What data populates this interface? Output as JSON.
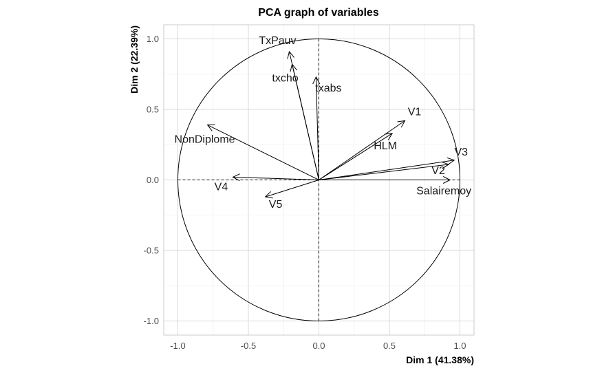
{
  "chart_data": {
    "type": "scatter",
    "title": "PCA graph of variables",
    "xlabel": "Dim 1 (41.38%)",
    "ylabel": "Dim 2 (22.39%)",
    "xlim": [
      -1.1,
      1.1
    ],
    "ylim": [
      -1.1,
      1.1
    ],
    "x_ticks": [
      "-1.0",
      "-0.5",
      "0.0",
      "0.5",
      "1.0"
    ],
    "y_ticks": [
      "-1.0",
      "-0.5",
      "0.0",
      "0.5",
      "1.0"
    ],
    "grid": true,
    "unit_circle": true,
    "variables": [
      {
        "name": "TxPauv",
        "x": -0.21,
        "y": 0.91
      },
      {
        "name": "txcho",
        "x": -0.19,
        "y": 0.82
      },
      {
        "name": "txabs",
        "x": -0.02,
        "y": 0.73
      },
      {
        "name": "V1",
        "x": 0.61,
        "y": 0.42
      },
      {
        "name": "HLM",
        "x": 0.52,
        "y": 0.33
      },
      {
        "name": "V3",
        "x": 0.96,
        "y": 0.14
      },
      {
        "name": "V2",
        "x": 0.92,
        "y": 0.11
      },
      {
        "name": "Salairemoy",
        "x": 0.93,
        "y": 0.0
      },
      {
        "name": "NonDiplome",
        "x": -0.79,
        "y": 0.39
      },
      {
        "name": "V4",
        "x": -0.61,
        "y": 0.02
      },
      {
        "name": "V5",
        "x": -0.38,
        "y": -0.12
      }
    ],
    "colors": {
      "arrow": "#000000",
      "grid": "#d9d9d9",
      "panel_border": "#bfbfbf"
    }
  }
}
